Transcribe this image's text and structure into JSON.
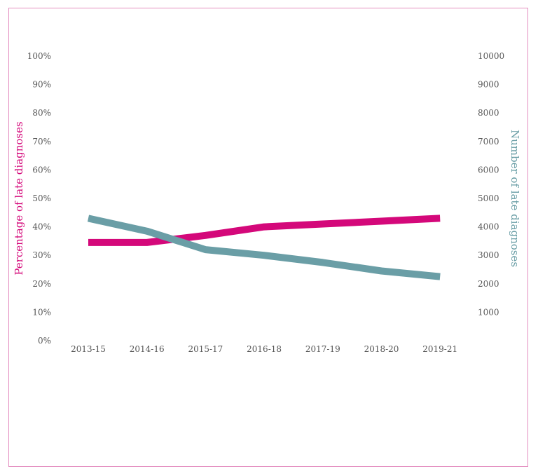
{
  "chart_data": {
    "type": "line",
    "categories": [
      "2013-15",
      "2014-16",
      "2015-17",
      "2016-18",
      "2017-19",
      "2018-20",
      "2019-21"
    ],
    "series": [
      {
        "axis": "left",
        "color": "#d4087a",
        "values": [
          34.5,
          34.5,
          37,
          40,
          41,
          42,
          43
        ]
      },
      {
        "axis": "right",
        "color": "#6a9ea6",
        "values": [
          4300,
          3850,
          3200,
          3000,
          2750,
          2450,
          2250
        ]
      }
    ],
    "left_axis": {
      "label": "Percentage of late diagnoses",
      "color": "#d4087a",
      "ylim": [
        0,
        100
      ],
      "ticks": [
        "0%",
        "10%",
        "20%",
        "30%",
        "40%",
        "50%",
        "60%",
        "70%",
        "80%",
        "90%",
        "100%"
      ]
    },
    "right_axis": {
      "label": "Number of late diagnoses",
      "color": "#6a9ea6",
      "ylim": [
        0,
        10000
      ],
      "ticks": [
        "1000",
        "2000",
        "3000",
        "4000",
        "5000",
        "6000",
        "7000",
        "8000",
        "9000",
        "10000"
      ]
    },
    "grid": false,
    "legend": "none"
  }
}
